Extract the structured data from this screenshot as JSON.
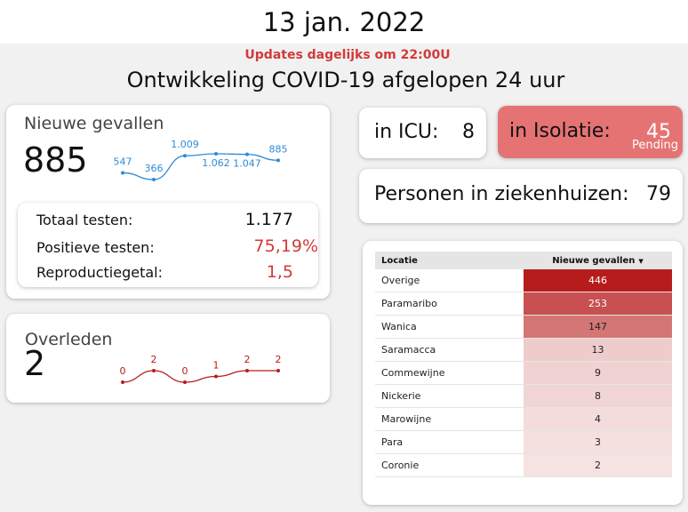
{
  "header": {
    "date": "13 jan. 2022",
    "updates": "Updates dagelijks om 22:00U",
    "subtitle": "Ontwikkeling COVID-19 afgelopen 24 uur"
  },
  "new_cases": {
    "title": "Nieuwe gevallen",
    "value": "885",
    "sparkline": [
      {
        "label": "547",
        "value": 547
      },
      {
        "label": "366",
        "value": 366
      },
      {
        "label": "1.009",
        "value": 1009
      },
      {
        "label": "1.062",
        "value": 1062
      },
      {
        "label": "1.047",
        "value": 1047
      },
      {
        "label": "885",
        "value": 885
      }
    ],
    "tests": {
      "total_label": "Totaal testen:",
      "total_value": "1.177",
      "positive_label": "Positieve testen:",
      "positive_value": "75,19%",
      "reproduction_label": "Reproductiegetal:",
      "reproduction_value": "1,5"
    }
  },
  "deaths": {
    "title": "Overleden",
    "value": "2",
    "sparkline": [
      {
        "label": "0",
        "value": 0
      },
      {
        "label": "2",
        "value": 2
      },
      {
        "label": "0",
        "value": 0
      },
      {
        "label": "1",
        "value": 1
      },
      {
        "label": "2",
        "value": 2
      },
      {
        "label": "2",
        "value": 2
      }
    ]
  },
  "icu": {
    "label": "in ICU:",
    "value": "8"
  },
  "isolation": {
    "label": "in Isolatie:",
    "value": "45",
    "note": "Pending"
  },
  "hospital": {
    "label": "Personen in ziekenhuizen:",
    "value": "79"
  },
  "table": {
    "col_location": "Locatie",
    "col_cases": "Nieuwe gevallen",
    "sort_icon": "sort-descending-icon",
    "rows": [
      {
        "location": "Overige",
        "cases": "446",
        "n": 446
      },
      {
        "location": "Paramaribo",
        "cases": "253",
        "n": 253
      },
      {
        "location": "Wanica",
        "cases": "147",
        "n": 147
      },
      {
        "location": "Saramacca",
        "cases": "13",
        "n": 13
      },
      {
        "location": "Commewijne",
        "cases": "9",
        "n": 9
      },
      {
        "location": "Nickerie",
        "cases": "8",
        "n": 8
      },
      {
        "location": "Marowijne",
        "cases": "4",
        "n": 4
      },
      {
        "location": "Para",
        "cases": "3",
        "n": 3
      },
      {
        "location": "Coronie",
        "cases": "2",
        "n": 2
      }
    ]
  },
  "colors": {
    "red": "#d23a3a",
    "blue": "#2d8bd8",
    "dark_red": "#b71c1c",
    "isolation_bg": "#e57373"
  }
}
